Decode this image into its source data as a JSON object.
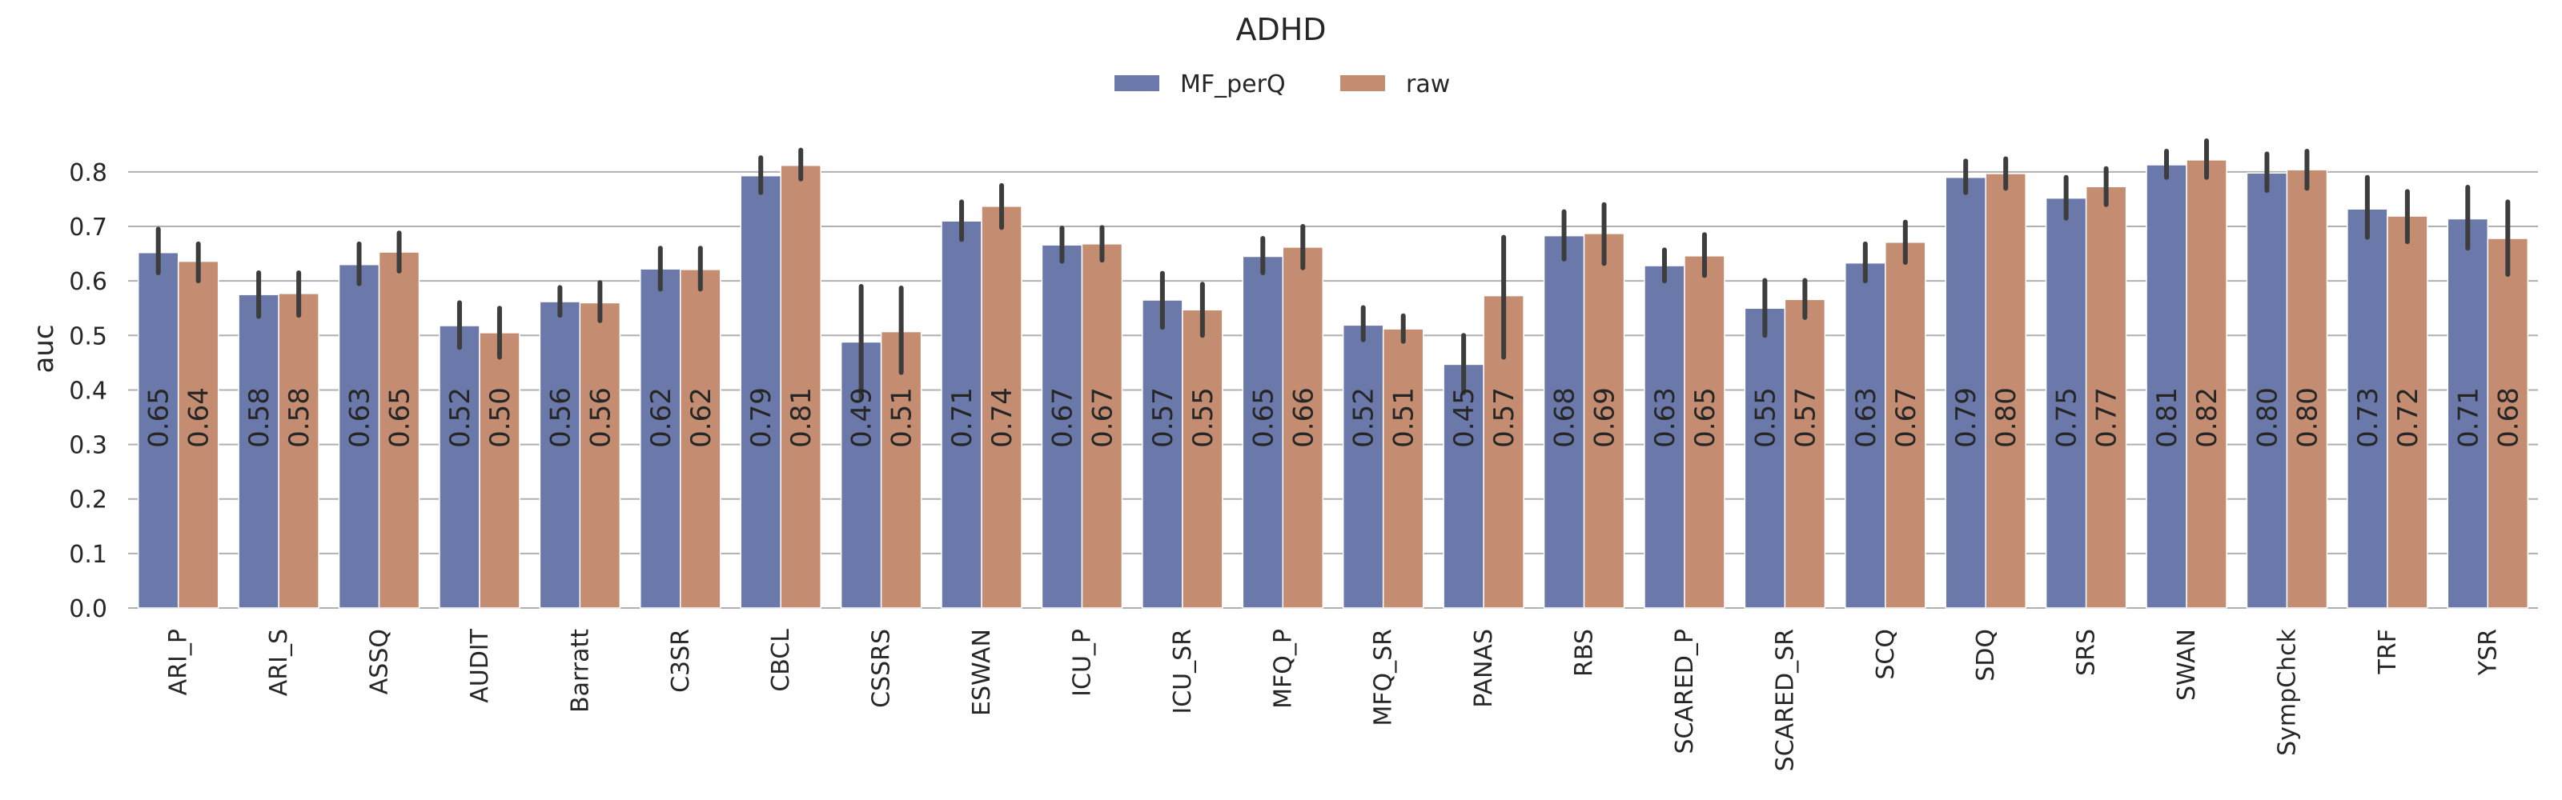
{
  "chart_data": {
    "type": "bar",
    "title": "ADHD",
    "xlabel": "",
    "ylabel": "auc",
    "ylim": [
      0,
      0.86
    ],
    "yticks": [
      "0.0",
      "0.1",
      "0.2",
      "0.3",
      "0.4",
      "0.5",
      "0.6",
      "0.7",
      "0.8"
    ],
    "grid": true,
    "legend_position": "top-center",
    "categories": [
      "ARI_P",
      "ARI_S",
      "ASSQ",
      "AUDIT",
      "Barratt",
      "C3SR",
      "CBCL",
      "CSSRS",
      "ESWAN",
      "ICU_P",
      "ICU_SR",
      "MFQ_P",
      "MFQ_SR",
      "PANAS",
      "RBS",
      "SCARED_P",
      "SCARED_SR",
      "SCQ",
      "SDQ",
      "SRS",
      "SWAN",
      "SympChck",
      "TRF",
      "YSR"
    ],
    "series": [
      {
        "name": "MF_perQ",
        "color": "#6a79aa",
        "values": [
          0.652,
          0.575,
          0.63,
          0.518,
          0.562,
          0.622,
          0.793,
          0.488,
          0.71,
          0.666,
          0.565,
          0.645,
          0.519,
          0.447,
          0.683,
          0.628,
          0.55,
          0.633,
          0.79,
          0.752,
          0.813,
          0.798,
          0.732,
          0.714
        ],
        "labels": [
          "0.65",
          "0.58",
          "0.63",
          "0.52",
          "0.56",
          "0.62",
          "0.79",
          "0.49",
          "0.71",
          "0.67",
          "0.57",
          "0.65",
          "0.52",
          "0.45",
          "0.68",
          "0.63",
          "0.55",
          "0.63",
          "0.79",
          "0.75",
          "0.81",
          "0.80",
          "0.73",
          "0.71"
        ],
        "ci": [
          [
            0.615,
            0.695
          ],
          [
            0.535,
            0.615
          ],
          [
            0.595,
            0.668
          ],
          [
            0.478,
            0.56
          ],
          [
            0.537,
            0.588
          ],
          [
            0.585,
            0.66
          ],
          [
            0.762,
            0.826
          ],
          [
            0.385,
            0.59
          ],
          [
            0.676,
            0.745
          ],
          [
            0.636,
            0.697
          ],
          [
            0.515,
            0.614
          ],
          [
            0.615,
            0.678
          ],
          [
            0.492,
            0.551
          ],
          [
            0.395,
            0.5
          ],
          [
            0.64,
            0.727
          ],
          [
            0.6,
            0.657
          ],
          [
            0.5,
            0.601
          ],
          [
            0.6,
            0.668
          ],
          [
            0.762,
            0.82
          ],
          [
            0.715,
            0.79
          ],
          [
            0.79,
            0.838
          ],
          [
            0.766,
            0.833
          ],
          [
            0.68,
            0.79
          ],
          [
            0.66,
            0.772
          ]
        ]
      },
      {
        "name": "raw",
        "color": "#c48c71",
        "values": [
          0.636,
          0.577,
          0.653,
          0.505,
          0.56,
          0.621,
          0.812,
          0.507,
          0.737,
          0.668,
          0.547,
          0.662,
          0.512,
          0.573,
          0.687,
          0.646,
          0.566,
          0.671,
          0.797,
          0.773,
          0.822,
          0.804,
          0.719,
          0.678
        ],
        "labels": [
          "0.64",
          "0.58",
          "0.65",
          "0.50",
          "0.56",
          "0.62",
          "0.81",
          "0.51",
          "0.74",
          "0.67",
          "0.55",
          "0.66",
          "0.51",
          "0.57",
          "0.69",
          "0.65",
          "0.57",
          "0.67",
          "0.80",
          "0.77",
          "0.82",
          "0.80",
          "0.72",
          "0.68"
        ],
        "ci": [
          [
            0.6,
            0.668
          ],
          [
            0.537,
            0.615
          ],
          [
            0.618,
            0.688
          ],
          [
            0.46,
            0.55
          ],
          [
            0.527,
            0.597
          ],
          [
            0.585,
            0.66
          ],
          [
            0.787,
            0.84
          ],
          [
            0.432,
            0.587
          ],
          [
            0.698,
            0.775
          ],
          [
            0.638,
            0.698
          ],
          [
            0.5,
            0.594
          ],
          [
            0.624,
            0.7
          ],
          [
            0.489,
            0.536
          ],
          [
            0.46,
            0.68
          ],
          [
            0.632,
            0.74
          ],
          [
            0.61,
            0.685
          ],
          [
            0.533,
            0.601
          ],
          [
            0.634,
            0.708
          ],
          [
            0.77,
            0.824
          ],
          [
            0.74,
            0.806
          ],
          [
            0.79,
            0.857
          ],
          [
            0.77,
            0.838
          ],
          [
            0.672,
            0.764
          ],
          [
            0.612,
            0.745
          ]
        ]
      }
    ]
  }
}
